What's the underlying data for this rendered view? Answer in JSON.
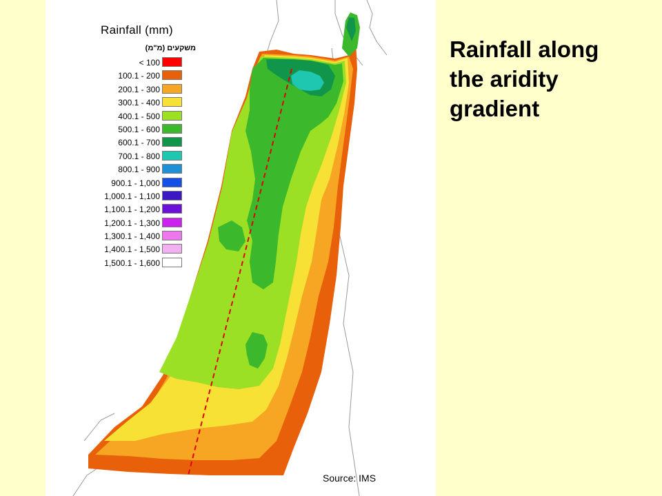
{
  "slide": {
    "title_lines": [
      "Rainfall along",
      "the aridity",
      "gradient"
    ]
  },
  "map": {
    "title": "Rainfall (mm)",
    "legend_header": "משקעים (מ\"מ)",
    "source": "Source: IMS",
    "transect_color": "#e00000",
    "legend": [
      {
        "label": "< 100",
        "color": "#ff0000"
      },
      {
        "label": "100.1 - 200",
        "color": "#e8600a"
      },
      {
        "label": "200.1 - 300",
        "color": "#f6a623"
      },
      {
        "label": "300.1 - 400",
        "color": "#f7e135"
      },
      {
        "label": "400.1 - 500",
        "color": "#9be024"
      },
      {
        "label": "500.1 - 600",
        "color": "#3cb82c"
      },
      {
        "label": "600.1 - 700",
        "color": "#11954a"
      },
      {
        "label": "700.1 - 800",
        "color": "#1fc6b0"
      },
      {
        "label": "800.1 - 900",
        "color": "#1e90d8"
      },
      {
        "label": "900.1 - 1,000",
        "color": "#1450e8"
      },
      {
        "label": "1,000.1 - 1,100",
        "color": "#3b18c4"
      },
      {
        "label": "1,100.1 - 1,200",
        "color": "#6a10d8"
      },
      {
        "label": "1,200.1 - 1,300",
        "color": "#cc22ee"
      },
      {
        "label": "1,300.1 - 1,400",
        "color": "#ee77ee"
      },
      {
        "label": "1,400.1 - 1,500",
        "color": "#f2b0f2"
      },
      {
        "label": "1,500.1 - 1,600",
        "color": "#ffffff"
      }
    ]
  }
}
